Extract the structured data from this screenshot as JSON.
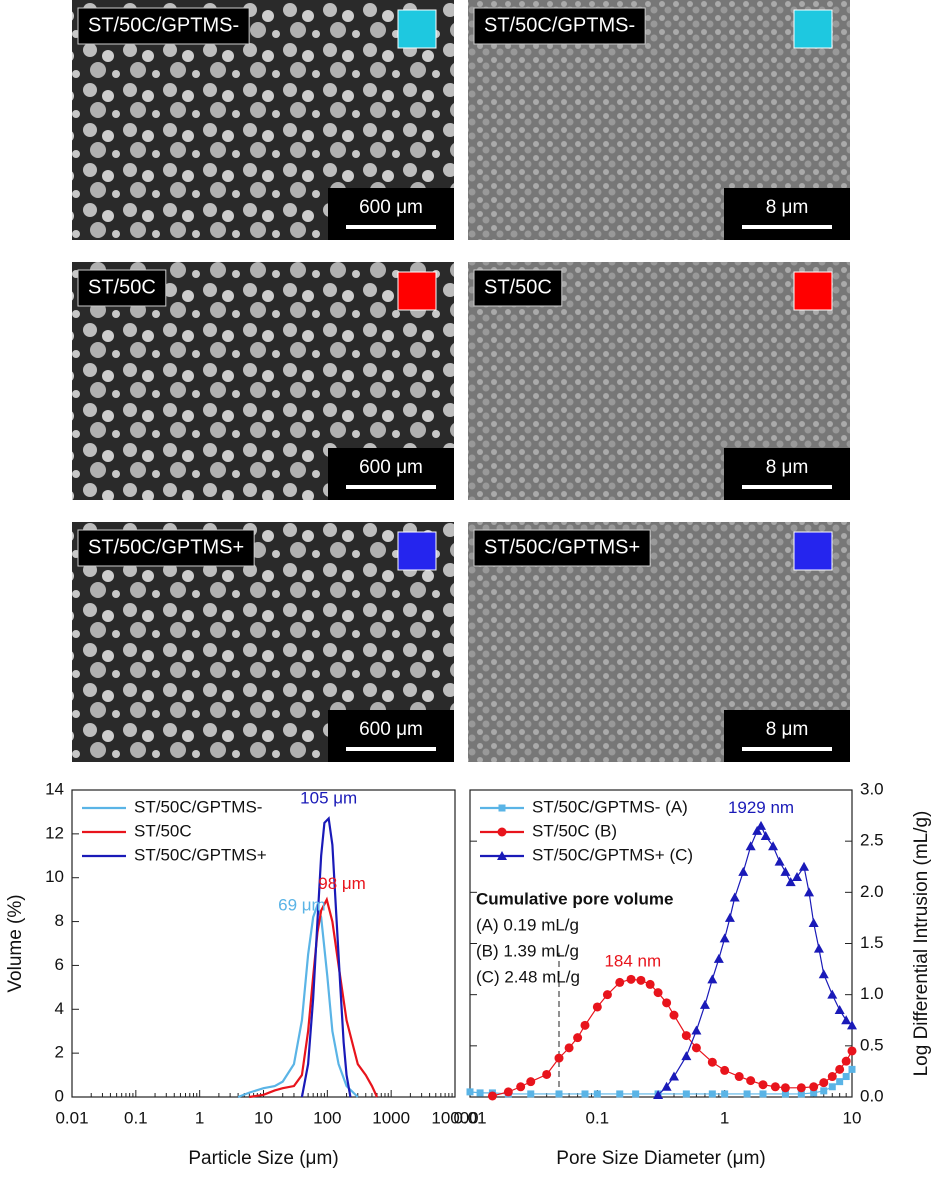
{
  "panels": [
    {
      "label": "ST/50C/GPTMS-",
      "color": "#1ec8e0",
      "scale": "600 μm"
    },
    {
      "label": "ST/50C/GPTMS-",
      "color": "#1ec8e0",
      "scale": "8 μm"
    },
    {
      "label": "ST/50C",
      "color": "#ff0000",
      "scale": "600 μm"
    },
    {
      "label": "ST/50C",
      "color": "#ff0000",
      "scale": "8 μm"
    },
    {
      "label": "ST/50C/GPTMS+",
      "color": "#2525ee",
      "scale": "600 μm"
    },
    {
      "label": "ST/50C/GPTMS+",
      "color": "#2525ee",
      "scale": "8 μm"
    }
  ],
  "chart_data": [
    {
      "type": "line",
      "x_label": "Particle Size (μm)",
      "y_label": "Volume (%)",
      "xlog": true,
      "xlim": [
        0.01,
        10000
      ],
      "xticks": [
        0.01,
        0.1,
        1,
        10,
        100,
        1000,
        10000
      ],
      "ylim": [
        0,
        14
      ],
      "yticks": [
        0,
        2,
        4,
        6,
        8,
        10,
        12,
        14
      ],
      "legend": "upper left",
      "series": [
        {
          "name": "ST/50C/GPTMS-",
          "color": "#5ab4e6",
          "x": [
            4,
            6,
            10,
            15,
            20,
            30,
            40,
            50,
            60,
            69,
            80,
            100,
            120,
            150,
            200,
            300
          ],
          "values": [
            0,
            0.2,
            0.4,
            0.5,
            0.7,
            1.5,
            3.5,
            6.5,
            8.2,
            8.7,
            8.2,
            5.5,
            3,
            1.5,
            0.5,
            0
          ]
        },
        {
          "name": "ST/50C",
          "color": "#e8141c",
          "x": [
            6,
            10,
            15,
            20,
            30,
            40,
            50,
            60,
            70,
            80,
            98,
            120,
            150,
            200,
            300,
            400,
            500,
            600
          ],
          "values": [
            0,
            0.1,
            0.3,
            0.4,
            0.5,
            1,
            3,
            5.5,
            7.5,
            8.5,
            9,
            8,
            6,
            3.5,
            1.5,
            1,
            0.5,
            0
          ]
        },
        {
          "name": "ST/50C/GPTMS+",
          "color": "#1a1ab8",
          "x": [
            40,
            50,
            60,
            70,
            80,
            90,
            105,
            120,
            140,
            160,
            180,
            200,
            230
          ],
          "values": [
            0,
            1.5,
            4.5,
            8,
            11,
            12.5,
            12.7,
            11.5,
            8,
            5,
            2.5,
            1,
            0
          ]
        }
      ],
      "annotations": [
        {
          "text": "105 μm",
          "color": "#1a1ab8"
        },
        {
          "text": "98 μm",
          "color": "#e8141c"
        },
        {
          "text": "69 μm",
          "color": "#5ab4e6"
        }
      ]
    },
    {
      "type": "line-marker",
      "x_label": "Pore Size Diameter (μm)",
      "y2_label": "Log Differential Intrusion (mL/g)",
      "xlog": true,
      "xlim": [
        0.01,
        10
      ],
      "xticks": [
        0.01,
        0.1,
        1,
        10
      ],
      "y2lim": [
        0,
        3
      ],
      "y2ticks": [
        {
          "value": 0,
          "label": "0.0"
        },
        0.5,
        {
          "value": 1,
          "label": "1.0"
        },
        1.5,
        {
          "value": 2,
          "label": "2.0"
        },
        2.5,
        {
          "value": 3,
          "label": "3.0"
        }
      ],
      "legend": "upper left",
      "reference_line_x": 0.05,
      "series": [
        {
          "name": "ST/50C/GPTMS- (A)",
          "color": "#5ab4e6",
          "marker": "square",
          "axis": "y2",
          "x": [
            0.01,
            0.012,
            0.015,
            0.02,
            0.03,
            0.05,
            0.08,
            0.1,
            0.15,
            0.2,
            0.3,
            0.5,
            0.8,
            1,
            1.5,
            2,
            3,
            4,
            5,
            6,
            7,
            8,
            9,
            10
          ],
          "values": [
            0.05,
            0.04,
            0.04,
            0.03,
            0.03,
            0.03,
            0.03,
            0.03,
            0.03,
            0.03,
            0.03,
            0.03,
            0.03,
            0.03,
            0.03,
            0.03,
            0.03,
            0.03,
            0.04,
            0.06,
            0.1,
            0.15,
            0.2,
            0.27
          ]
        },
        {
          "name": "ST/50C (B)",
          "color": "#e8141c",
          "marker": "circle",
          "axis": "y2",
          "x": [
            0.015,
            0.02,
            0.025,
            0.03,
            0.04,
            0.05,
            0.06,
            0.07,
            0.08,
            0.1,
            0.12,
            0.15,
            0.184,
            0.22,
            0.26,
            0.3,
            0.35,
            0.4,
            0.5,
            0.6,
            0.8,
            1,
            1.3,
            1.6,
            2,
            2.5,
            3,
            4,
            5,
            6,
            7,
            8,
            9,
            10
          ],
          "values": [
            0.01,
            0.05,
            0.1,
            0.15,
            0.22,
            0.38,
            0.48,
            0.58,
            0.7,
            0.88,
            1.0,
            1.12,
            1.15,
            1.14,
            1.1,
            1.02,
            0.92,
            0.8,
            0.6,
            0.48,
            0.34,
            0.26,
            0.2,
            0.16,
            0.12,
            0.1,
            0.09,
            0.09,
            0.1,
            0.14,
            0.2,
            0.27,
            0.35,
            0.45
          ]
        },
        {
          "name": "ST/50C/GPTMS+ (C)",
          "color": "#1a1ab8",
          "marker": "triangle",
          "axis": "y2",
          "x": [
            0.3,
            0.35,
            0.4,
            0.5,
            0.6,
            0.7,
            0.8,
            0.9,
            1,
            1.1,
            1.2,
            1.4,
            1.6,
            1.8,
            1.929,
            2.1,
            2.4,
            2.7,
            3,
            3.3,
            3.7,
            4.2,
            4.6,
            5,
            5.5,
            6,
            7,
            8,
            9,
            10
          ],
          "values": [
            0.02,
            0.1,
            0.2,
            0.4,
            0.65,
            0.9,
            1.15,
            1.35,
            1.55,
            1.75,
            1.95,
            2.2,
            2.45,
            2.6,
            2.65,
            2.55,
            2.45,
            2.3,
            2.2,
            2.1,
            2.15,
            2.25,
            2.0,
            1.7,
            1.45,
            1.2,
            1.0,
            0.85,
            0.75,
            0.7
          ]
        }
      ],
      "annotations": [
        {
          "text": "184 nm",
          "color": "#e8141c"
        },
        {
          "text": "1929 nm",
          "color": "#1a1ab8"
        }
      ],
      "note_title": "Cumulative pore volume",
      "note_lines": [
        "(A) 0.19 mL/g",
        "(B) 1.39 mL/g",
        "(C) 2.48 mL/g"
      ]
    }
  ]
}
